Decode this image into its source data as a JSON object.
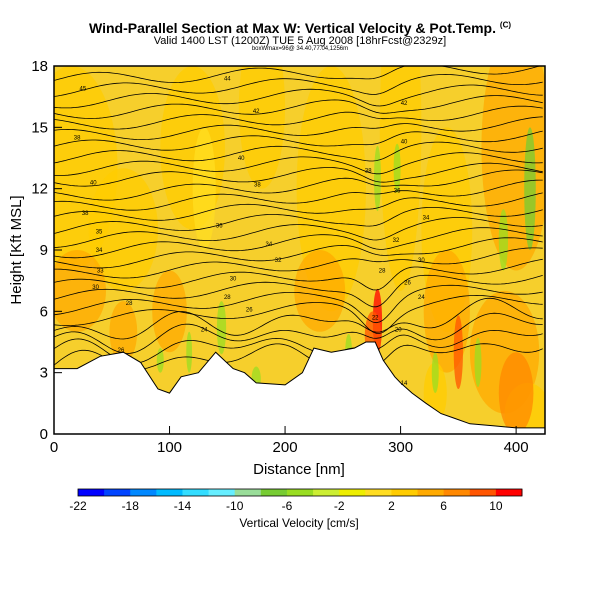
{
  "header": {
    "title": "Wind-Parallel Section at Max W: Vertical Velocity & Pot.Temp.",
    "title_mark": "(C)",
    "subtitle": "Valid 1400 LST (1200Z) TUE 5 Aug 2008 [18hrFcst@2329z]",
    "subtitle2": "boxWmax=96@ 34.40,77.04,1256m"
  },
  "chart_data": {
    "type": "heatmap",
    "xlabel": "Distance [nm]",
    "ylabel": "Height [Kft MSL]",
    "xlim": [
      0,
      425
    ],
    "ylim": [
      0,
      18
    ],
    "x_ticks": [
      0,
      100,
      200,
      300,
      400
    ],
    "y_ticks": [
      0,
      3,
      6,
      9,
      12,
      15,
      18
    ],
    "colorbar": {
      "label": "Vertical Velocity [cm/s]",
      "tick_labels": [
        "-22",
        "-18",
        "-14",
        "-10",
        "-6",
        "-2",
        "2",
        "6",
        "10"
      ],
      "bins": [
        -22,
        -20,
        -18,
        -16,
        -14,
        -12,
        -10,
        -8,
        -6,
        -4,
        -2,
        0,
        2,
        4,
        6,
        8,
        10,
        12
      ],
      "colors": [
        "#0000ff",
        "#0044ff",
        "#0088ff",
        "#00bbff",
        "#33ddff",
        "#66eeff",
        "#99dd99",
        "#77cc33",
        "#99dd22",
        "#ccee33",
        "#eeee00",
        "#ffdd22",
        "#ffcc00",
        "#ffaa00",
        "#ff8800",
        "#ff5500",
        "#ff0000"
      ]
    },
    "terrain_kft": [
      [
        0,
        3.2
      ],
      [
        20,
        3.2
      ],
      [
        40,
        3.8
      ],
      [
        60,
        4.0
      ],
      [
        75,
        3.5
      ],
      [
        90,
        2.2
      ],
      [
        100,
        2.0
      ],
      [
        110,
        2.8
      ],
      [
        125,
        3.0
      ],
      [
        140,
        4.0
      ],
      [
        155,
        3.2
      ],
      [
        165,
        3.0
      ],
      [
        175,
        2.5
      ],
      [
        200,
        2.4
      ],
      [
        215,
        3.0
      ],
      [
        225,
        4.2
      ],
      [
        240,
        4.0
      ],
      [
        260,
        4.2
      ],
      [
        270,
        4.5
      ],
      [
        278,
        4.5
      ],
      [
        285,
        3.6
      ],
      [
        295,
        2.8
      ],
      [
        300,
        2.5
      ],
      [
        310,
        2.0
      ],
      [
        322,
        1.5
      ],
      [
        335,
        1.0
      ],
      [
        345,
        0.8
      ],
      [
        360,
        0.5
      ],
      [
        380,
        0.4
      ],
      [
        400,
        0.3
      ],
      [
        425,
        0.3
      ]
    ],
    "isentrope_labels": [
      {
        "x": 150,
        "y": 17.4,
        "label": "44"
      },
      {
        "x": 25,
        "y": 16.9,
        "label": "45"
      },
      {
        "x": 175,
        "y": 15.8,
        "label": "42"
      },
      {
        "x": 303,
        "y": 16.2,
        "label": "42"
      },
      {
        "x": 20,
        "y": 14.5,
        "label": "38"
      },
      {
        "x": 303,
        "y": 14.3,
        "label": "40"
      },
      {
        "x": 162,
        "y": 13.5,
        "label": "40"
      },
      {
        "x": 272,
        "y": 12.9,
        "label": "38"
      },
      {
        "x": 34,
        "y": 12.3,
        "label": "40"
      },
      {
        "x": 176,
        "y": 12.2,
        "label": "38"
      },
      {
        "x": 297,
        "y": 11.9,
        "label": "36"
      },
      {
        "x": 27,
        "y": 10.8,
        "label": "38"
      },
      {
        "x": 322,
        "y": 10.6,
        "label": "34"
      },
      {
        "x": 143,
        "y": 10.2,
        "label": "36"
      },
      {
        "x": 39,
        "y": 9.9,
        "label": "35"
      },
      {
        "x": 296,
        "y": 9.5,
        "label": "32"
      },
      {
        "x": 186,
        "y": 9.3,
        "label": "34"
      },
      {
        "x": 39,
        "y": 9.0,
        "label": "34"
      },
      {
        "x": 318,
        "y": 8.5,
        "label": "30"
      },
      {
        "x": 194,
        "y": 8.5,
        "label": "32"
      },
      {
        "x": 40,
        "y": 8.0,
        "label": "33"
      },
      {
        "x": 284,
        "y": 8.0,
        "label": "28"
      },
      {
        "x": 155,
        "y": 7.6,
        "label": "30"
      },
      {
        "x": 306,
        "y": 7.4,
        "label": "26"
      },
      {
        "x": 36,
        "y": 7.2,
        "label": "30"
      },
      {
        "x": 150,
        "y": 6.7,
        "label": "28"
      },
      {
        "x": 318,
        "y": 6.7,
        "label": "24"
      },
      {
        "x": 65,
        "y": 6.4,
        "label": "28"
      },
      {
        "x": 169,
        "y": 6.1,
        "label": "26"
      },
      {
        "x": 278,
        "y": 5.7,
        "label": "22"
      },
      {
        "x": 130,
        "y": 5.1,
        "label": "24"
      },
      {
        "x": 298,
        "y": 5.1,
        "label": "20"
      },
      {
        "x": 58,
        "y": 4.1,
        "label": "26"
      },
      {
        "x": 303,
        "y": 2.5,
        "label": "14"
      }
    ]
  }
}
